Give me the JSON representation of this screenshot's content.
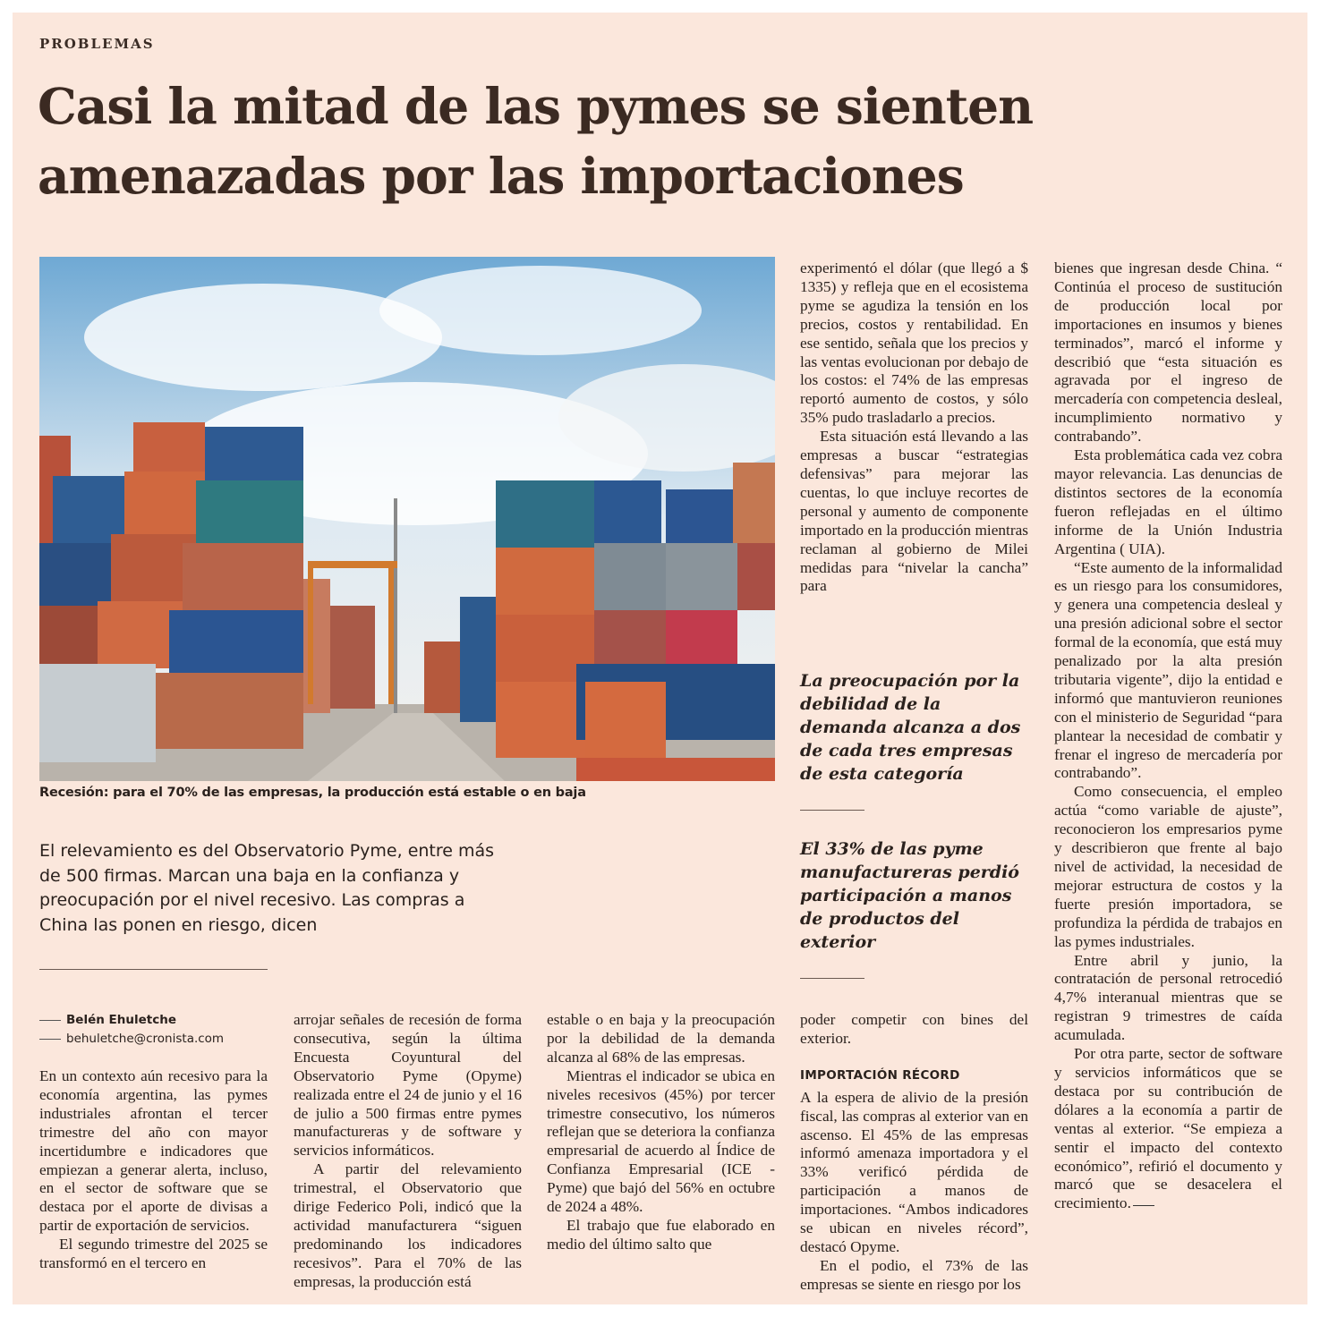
{
  "section": "PROBLEMAS",
  "headline": "Casi la mitad de las pymes se sienten amenazadas por las importaciones",
  "photo": {
    "caption": "Recesión: para el 70% de las empresas, la producción está estable o en baja"
  },
  "deck": "El relevamiento es del Observatorio Pyme, entre más de 500 firmas. Marcan una baja en la confianza y preocupación por el nivel recesivo. Las compras a China las ponen en riesgo, dicen",
  "byline": {
    "author": "Belén Ehuletche",
    "email": "behuletche@cronista.com"
  },
  "columns": {
    "col1": [
      "En un contexto aún recesivo para la economía argentina, las pymes industriales afrontan el tercer trimestre del año con mayor incertidumbre e indicadores que empiezan a generar alerta, incluso, en el sector de software que se destaca por el aporte de divisas a partir de exportación de servicios.",
      "El segundo trimestre del 2025 se transformó en el tercero en"
    ],
    "col2": [
      "arrojar señales de recesión de forma consecutiva, según la última Encuesta Coyuntural del Observatorio Pyme (Opyme) realizada entre el 24 de junio y el 16 de julio a 500 firmas entre pymes manufactureras y de software y servicios informáticos.",
      "A partir del relevamiento trimestral, el Observatorio que dirige Federico Poli, indicó que la actividad manufacturera “siguen predominando los indicadores recesivos”. Para el 70% de las empresas, la producción está"
    ],
    "col3": [
      "estable o en baja y la preocupación por la debilidad de la demanda alcanza al 68% de las empresas.",
      "Mientras el indicador se ubica en niveles recesivos (45%) por tercer trimestre consecutivo, los números reflejan que se deteriora la confianza empresarial de acuerdo al Índice de Confianza Empresarial (ICE - Pyme) que bajó del 56% en octubre de 2024 a 48%.",
      "El trabajo que fue elaborado en medio del último salto que"
    ],
    "col4_top": [
      "experimentó el dólar (que llegó a $ 1335) y refleja que en el ecosistema pyme se agudiza la tensión en los precios, costos y rentabilidad. En ese sentido, señala que los precios y las ventas evolucionan por debajo de los costos: el 74% de las empresas reportó aumento de costos, y sólo 35% pudo trasladarlo a precios.",
      "Esta situación está llevando a las empresas a buscar “estrategias defensivas” para mejorar las cuentas, lo que incluye recortes de personal y aumento de componente importado en la producción mientras reclaman al gobierno de Milei medidas para “nivelar la cancha” para"
    ],
    "col4_bottom": [
      "poder competir con bines del exterior."
    ],
    "col4_subhead": "IMPORTACIÓN RÉCORD",
    "col4_after": [
      "A la espera de alivio de la presión fiscal, las compras al exterior van en ascenso. El 45% de las empresas informó amenaza importadora y el 33% verificó pérdida de participación a manos de importaciones. “Ambos indicadores se ubican en niveles récord”, destacó Opyme.",
      "En el podio, el 73% de las empresas se siente en riesgo por los"
    ],
    "col5": [
      "bienes que ingresan desde China. “ Continúa el proceso de sustitución de producción local por importaciones en insumos y bienes terminados”, marcó el informe y describió que “esta situación es agravada por el ingreso de mercadería con competencia desleal, incumplimiento normativo y contrabando”.",
      "Esta problemática cada vez cobra mayor relevancia. Las denuncias de distintos sectores de la economía fueron reflejadas en el último informe de la Unión Industria Argentina ( UIA).",
      "“Este aumento de la informalidad es un riesgo para los consumidores, y genera una competencia desleal y una presión adicional sobre el sector formal de la economía, que está muy penalizado por la alta presión tributaria vigente”, dijo la entidad e informó que mantuvieron reuniones con el ministerio de Seguridad “para plantear la necesidad de combatir y frenar el ingreso de mercadería por contrabando”.",
      "Como consecuencia, el empleo actúa “como variable de ajuste”, reconocieron los empresarios pyme y describieron que frente al bajo nivel de actividad, la necesidad de mejorar estructura de costos y la fuerte presión importadora, se profundiza la pérdida de trabajos en las pymes industriales.",
      "Entre abril y junio, la contratación de personal retrocedió 4,7% interanual mientras que se registran 9 trimestres de caída acumulada.",
      "Por otra parte, sector de software y servicios informáticos que se destaca por su contribución de dólares a la economía a partir de ventas al exterior. “Se empieza a sentir el impacto del contexto económico”, refirió el documento y marcó que se desacelera el crecimiento."
    ]
  },
  "pull_quotes": [
    "La preocupación por la debilidad de la demanda alcanza a dos de cada tres empresas de esta categoría",
    "El 33% de las pyme manufactureras perdió participación a manos de productos del exterior"
  ],
  "colors": {
    "paper": "#fbe7dc",
    "headline": "#3b2a22",
    "text": "#2a211d"
  }
}
